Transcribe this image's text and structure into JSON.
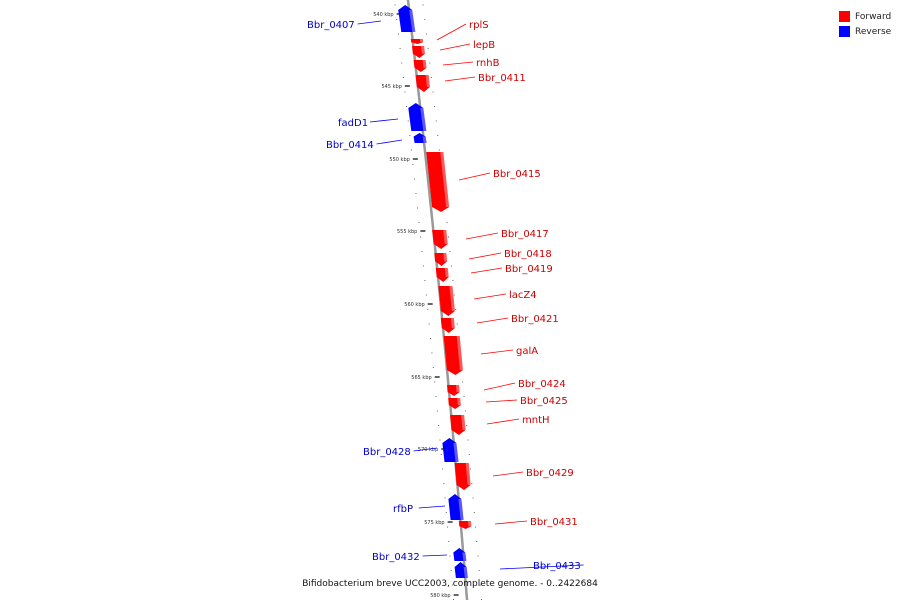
{
  "legend": {
    "items": [
      {
        "label": "Forward",
        "color": "#ff0000"
      },
      {
        "label": "Reverse",
        "color": "#0000ff"
      }
    ]
  },
  "caption": "Bifidobacterium breve UCC2003, complete genome. - 0..2422684",
  "colors": {
    "forward": "#ff0000",
    "reverse": "#0000ff",
    "backbone": "#999999"
  },
  "genome_map": {
    "scale_labels": [
      "540 kbp",
      "545 kbp",
      "550 kbp",
      "555 kbp",
      "560 kbp",
      "565 kbp",
      "570 kbp",
      "575 kbp",
      "580 kbp"
    ],
    "genes": [
      {
        "name": "Bbr_0407",
        "strand": "reverse"
      },
      {
        "name": "rplS",
        "strand": "forward"
      },
      {
        "name": "lepB",
        "strand": "forward"
      },
      {
        "name": "rnhB",
        "strand": "forward"
      },
      {
        "name": "Bbr_0411",
        "strand": "forward"
      },
      {
        "name": "fadD1",
        "strand": "reverse"
      },
      {
        "name": "Bbr_0414",
        "strand": "reverse"
      },
      {
        "name": "Bbr_0415",
        "strand": "forward"
      },
      {
        "name": "Bbr_0417",
        "strand": "forward"
      },
      {
        "name": "Bbr_0418",
        "strand": "forward"
      },
      {
        "name": "Bbr_0419",
        "strand": "forward"
      },
      {
        "name": "lacZ4",
        "strand": "forward"
      },
      {
        "name": "Bbr_0421",
        "strand": "forward"
      },
      {
        "name": "galA",
        "strand": "forward"
      },
      {
        "name": "Bbr_0424",
        "strand": "forward"
      },
      {
        "name": "Bbr_0425",
        "strand": "forward"
      },
      {
        "name": "mntH",
        "strand": "forward"
      },
      {
        "name": "Bbr_0428",
        "strand": "reverse"
      },
      {
        "name": "Bbr_0429",
        "strand": "forward"
      },
      {
        "name": "rfbP",
        "strand": "reverse"
      },
      {
        "name": "Bbr_0431",
        "strand": "forward"
      },
      {
        "name": "Bbr_0432",
        "strand": "reverse"
      },
      {
        "name": "Bbr_0433",
        "strand": "reverse"
      }
    ]
  }
}
